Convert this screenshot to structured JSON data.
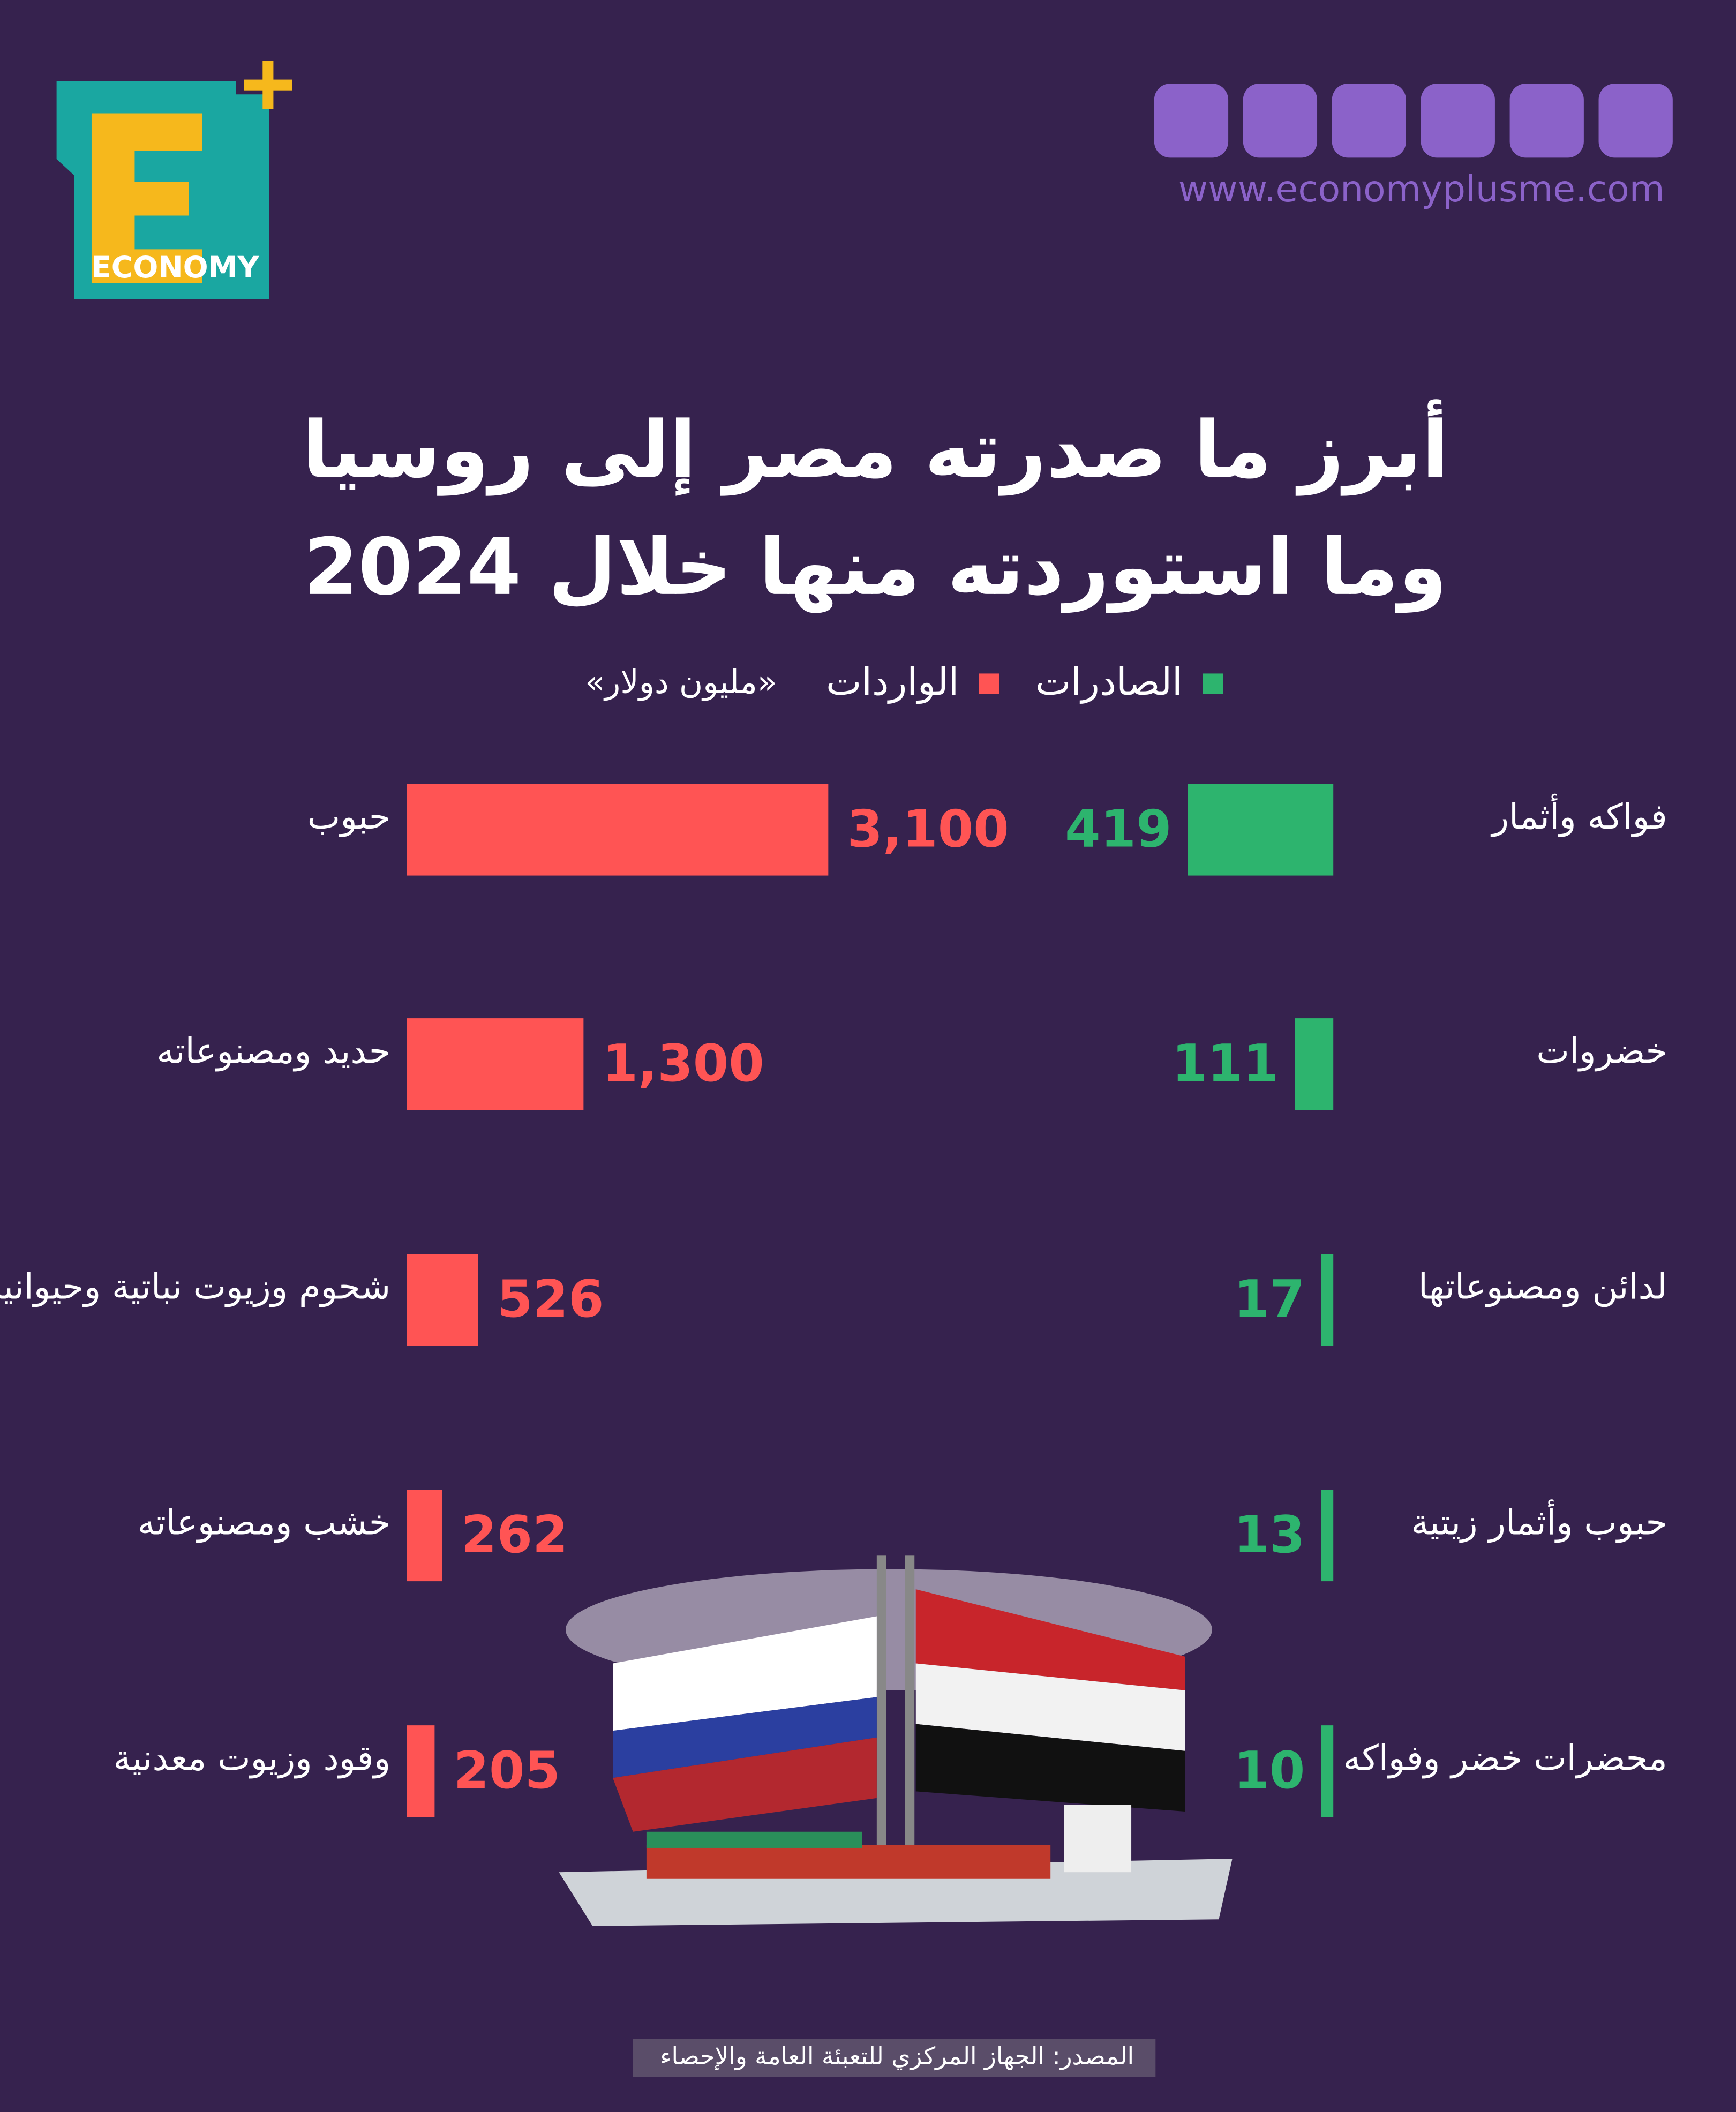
{
  "header": {
    "logo": "ECONOMY",
    "website": "www.economyplusme.com"
  },
  "title": [
    "أبرز ما صدرته مصر إلى روسيا",
    "وما استوردته منها خلال 2024"
  ],
  "unit": "«مليون دولار»",
  "source": "المصدر: الجهاز المركزي للتعبئة العامة والإحصاء",
  "chart_data": [
    {
      "type": "bar",
      "orientation": "horizontal",
      "categories": [
        "فواكه وأثمار",
        "خضروات",
        "لدائن ومصنوعاتها",
        "حبوب وأثمار زيتية",
        "محضرات خضر وفواكه"
      ],
      "series": [
        {
          "name": "الصادرات",
          "color": "#2db46e",
          "values": [
            419,
            111,
            17,
            13,
            10
          ]
        }
      ]
    },
    {
      "type": "bar",
      "orientation": "horizontal",
      "categories": [
        "حبوب",
        "حديد ومصنوعاته",
        "شحوم وزيوت نباتية وحيوانية",
        "خشب ومصنوعاته",
        "وقود وزيوت معدنية"
      ],
      "series": [
        {
          "name": "الواردات",
          "color": "#ff5454",
          "values": [
            3100,
            1300,
            526,
            262,
            205
          ],
          "value_labels": [
            "3,100",
            "1,300",
            "526",
            "262",
            "205"
          ]
        }
      ]
    }
  ]
}
